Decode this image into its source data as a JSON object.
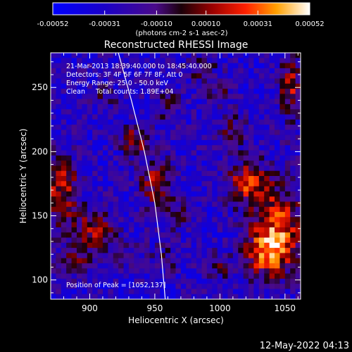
{
  "chart_data": {
    "type": "heatmap",
    "title": "Reconstructed RHESSI Image",
    "xlabel": "Heliocentric X (arcsec)",
    "ylabel": "Heliocentric Y (arcsec)",
    "xlim": [
      870,
      1062
    ],
    "ylim": [
      85,
      277
    ],
    "x_ticks": [
      900,
      950,
      1000,
      1050
    ],
    "y_ticks": [
      100,
      150,
      200,
      250
    ],
    "grid": false,
    "colorbar": {
      "range": [
        -0.00052,
        0.00052
      ],
      "tick_values": [
        -0.00052,
        -0.00031,
        -0.0001,
        0.0001,
        0.00031,
        0.00052
      ],
      "tick_labels": [
        "-0.00052",
        "-0.00031",
        "-0.00010",
        "0.00010",
        "0.00031",
        "0.00052"
      ],
      "unit_label": "(photons cm-2 s-1 asec-2)"
    },
    "annotations": [
      "21-Mar-2013 18:39:40.000 to 18:45:40.000",
      "Detectors: 3F 4F 5F 6F 7F 8F, Att 0",
      "Energy Range: 25.0 - 50.0 keV",
      "Clean     Total counts: 1.89E+04",
      "Position of Peak = [1052,137]"
    ],
    "peak": [
      1052,
      137
    ],
    "limb": [
      [
        922,
        277
      ],
      [
        932,
        240
      ],
      [
        942,
        200
      ],
      [
        950,
        160
      ],
      [
        955,
        120
      ],
      [
        958,
        85
      ]
    ],
    "sources": [
      {
        "x": 1045,
        "y": 140,
        "sx": 14,
        "sy": 22,
        "v": 0.00052
      },
      {
        "x": 1022,
        "y": 175,
        "sx": 12,
        "sy": 12,
        "v": 0.00046
      },
      {
        "x": 1035,
        "y": 120,
        "sx": 12,
        "sy": 12,
        "v": 0.0004
      },
      {
        "x": 1055,
        "y": 250,
        "sx": 7,
        "sy": 18,
        "v": 0.00038
      },
      {
        "x": 1010,
        "y": 215,
        "sx": 7,
        "sy": 10,
        "v": 0.00026
      },
      {
        "x": 1000,
        "y": 110,
        "sx": 8,
        "sy": 8,
        "v": 0.0002
      },
      {
        "x": 878,
        "y": 170,
        "sx": 10,
        "sy": 20,
        "v": 0.00042
      },
      {
        "x": 905,
        "y": 140,
        "sx": 10,
        "sy": 10,
        "v": 0.0004
      },
      {
        "x": 890,
        "y": 115,
        "sx": 12,
        "sy": 9,
        "v": 0.00028
      },
      {
        "x": 950,
        "y": 175,
        "sx": 9,
        "sy": 14,
        "v": 0.00036
      },
      {
        "x": 935,
        "y": 208,
        "sx": 7,
        "sy": 8,
        "v": 0.00042
      },
      {
        "x": 960,
        "y": 235,
        "sx": 7,
        "sy": 9,
        "v": 0.00024
      },
      {
        "x": 968,
        "y": 150,
        "sx": 8,
        "sy": 8,
        "v": 0.00026
      },
      {
        "x": 912,
        "y": 242,
        "sx": 6,
        "sy": 7,
        "v": 0.0002
      },
      {
        "x": 985,
        "y": 265,
        "sx": 9,
        "sy": 7,
        "v": 0.00024
      },
      {
        "x": 1000,
        "y": 245,
        "sx": 6,
        "sy": 6,
        "v": 0.00022
      },
      {
        "x": 960,
        "y": 118,
        "sx": 8,
        "sy": 8,
        "v": 0.00018
      },
      {
        "x": 930,
        "y": 120,
        "sx": 8,
        "sy": 7,
        "v": 0.00016
      }
    ]
  },
  "footer": {
    "timestamp": "12-May-2022 04:13"
  }
}
